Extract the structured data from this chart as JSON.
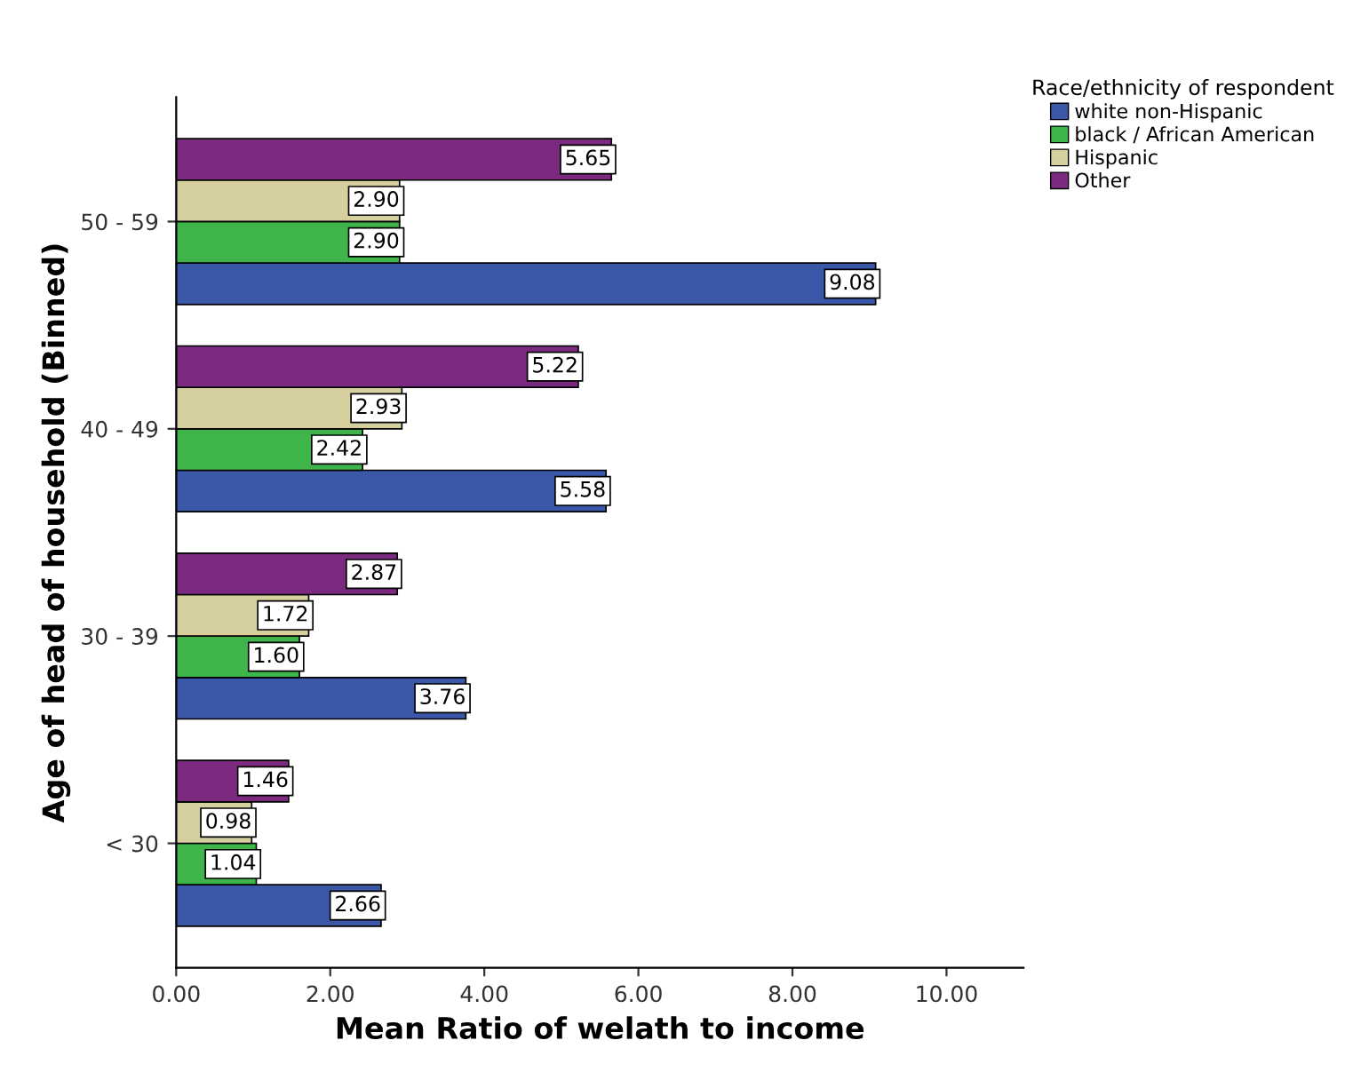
{
  "chart_data": {
    "type": "bar",
    "orientation": "horizontal",
    "xlabel": "Mean Ratio of welath to income",
    "ylabel": "Age of head of household (Binned)",
    "legend_title": "Race/ethnicity of respondent",
    "legend": "top right",
    "categories": [
      "50 - 59",
      "40 - 49",
      "30 - 39",
      "< 30"
    ],
    "series": [
      {
        "name": "white non-Hispanic",
        "color": "#3a57a8",
        "values": [
          9.08,
          5.58,
          3.76,
          2.66
        ],
        "value_labels": [
          "9.08",
          "5.58",
          "3.76",
          "2.66"
        ]
      },
      {
        "name": "black / African American",
        "color": "#3fb44a",
        "values": [
          2.9,
          2.42,
          1.6,
          1.04
        ],
        "value_labels": [
          "2.90",
          "2.42",
          "1.60",
          "1.04"
        ]
      },
      {
        "name": "Hispanic",
        "color": "#d6cf9e",
        "values": [
          2.9,
          2.93,
          1.72,
          0.98
        ],
        "value_labels": [
          "2.90",
          "2.93",
          "1.72",
          "0.98"
        ]
      },
      {
        "name": "Other",
        "color": "#7b2a7f",
        "values": [
          5.65,
          5.22,
          2.87,
          1.46
        ],
        "value_labels": [
          "5.65",
          "5.22",
          "2.87",
          "1.46"
        ]
      }
    ],
    "xlim": [
      0,
      11
    ],
    "xticks": [
      {
        "value": 0,
        "label": "0.00"
      },
      {
        "value": 2,
        "label": "2.00"
      },
      {
        "value": 4,
        "label": "4.00"
      },
      {
        "value": 6,
        "label": "6.00"
      },
      {
        "value": 8,
        "label": "8.00"
      },
      {
        "value": 10,
        "label": "10.00"
      }
    ]
  }
}
